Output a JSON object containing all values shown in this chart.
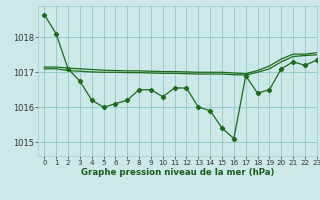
{
  "title": "Graphe pression niveau de la mer (hPa)",
  "bg_color": "#cce8e8",
  "grid_color": "#99cccc",
  "line_color": "#1a6b1a",
  "xlim": [
    -0.5,
    23
  ],
  "ylim": [
    1014.6,
    1018.9
  ],
  "yticks": [
    1015,
    1016,
    1017,
    1018
  ],
  "xticks": [
    0,
    1,
    2,
    3,
    4,
    5,
    6,
    7,
    8,
    9,
    10,
    11,
    12,
    13,
    14,
    15,
    16,
    17,
    18,
    19,
    20,
    21,
    22,
    23
  ],
  "line1_x": [
    0,
    1,
    2,
    3,
    4,
    5,
    6,
    7,
    8,
    9,
    10,
    11,
    12,
    13,
    14,
    15,
    16,
    17,
    18,
    19,
    20,
    21,
    22,
    23
  ],
  "line1_y": [
    1018.65,
    1018.1,
    1017.1,
    1016.75,
    1016.2,
    1016.0,
    1016.1,
    1016.2,
    1016.5,
    1016.5,
    1016.3,
    1016.55,
    1016.55,
    1016.0,
    1015.9,
    1015.4,
    1015.1,
    1016.9,
    1016.4,
    1016.5,
    1017.1,
    1017.3,
    1017.2,
    1017.35
  ],
  "line2_x": [
    0,
    1,
    2,
    3,
    4,
    5,
    6,
    7,
    8,
    9,
    10,
    11,
    12,
    13,
    14,
    15,
    16,
    17,
    18,
    19,
    20,
    21,
    22,
    23
  ],
  "line2_y": [
    1017.1,
    1017.1,
    1017.05,
    1017.03,
    1017.01,
    1017.0,
    1017.0,
    1016.99,
    1016.99,
    1016.98,
    1016.97,
    1016.97,
    1016.96,
    1016.95,
    1016.95,
    1016.95,
    1016.93,
    1016.92,
    1017.0,
    1017.1,
    1017.3,
    1017.45,
    1017.48,
    1017.5
  ],
  "line3_x": [
    0,
    1,
    2,
    3,
    4,
    5,
    6,
    7,
    8,
    9,
    10,
    11,
    12,
    13,
    14,
    15,
    16,
    17,
    18,
    19,
    20,
    21,
    22,
    23
  ],
  "line3_y": [
    1017.15,
    1017.15,
    1017.12,
    1017.1,
    1017.08,
    1017.06,
    1017.05,
    1017.04,
    1017.04,
    1017.03,
    1017.02,
    1017.02,
    1017.01,
    1017.0,
    1017.0,
    1017.0,
    1016.98,
    1016.96,
    1017.05,
    1017.18,
    1017.38,
    1017.52,
    1017.52,
    1017.56
  ]
}
